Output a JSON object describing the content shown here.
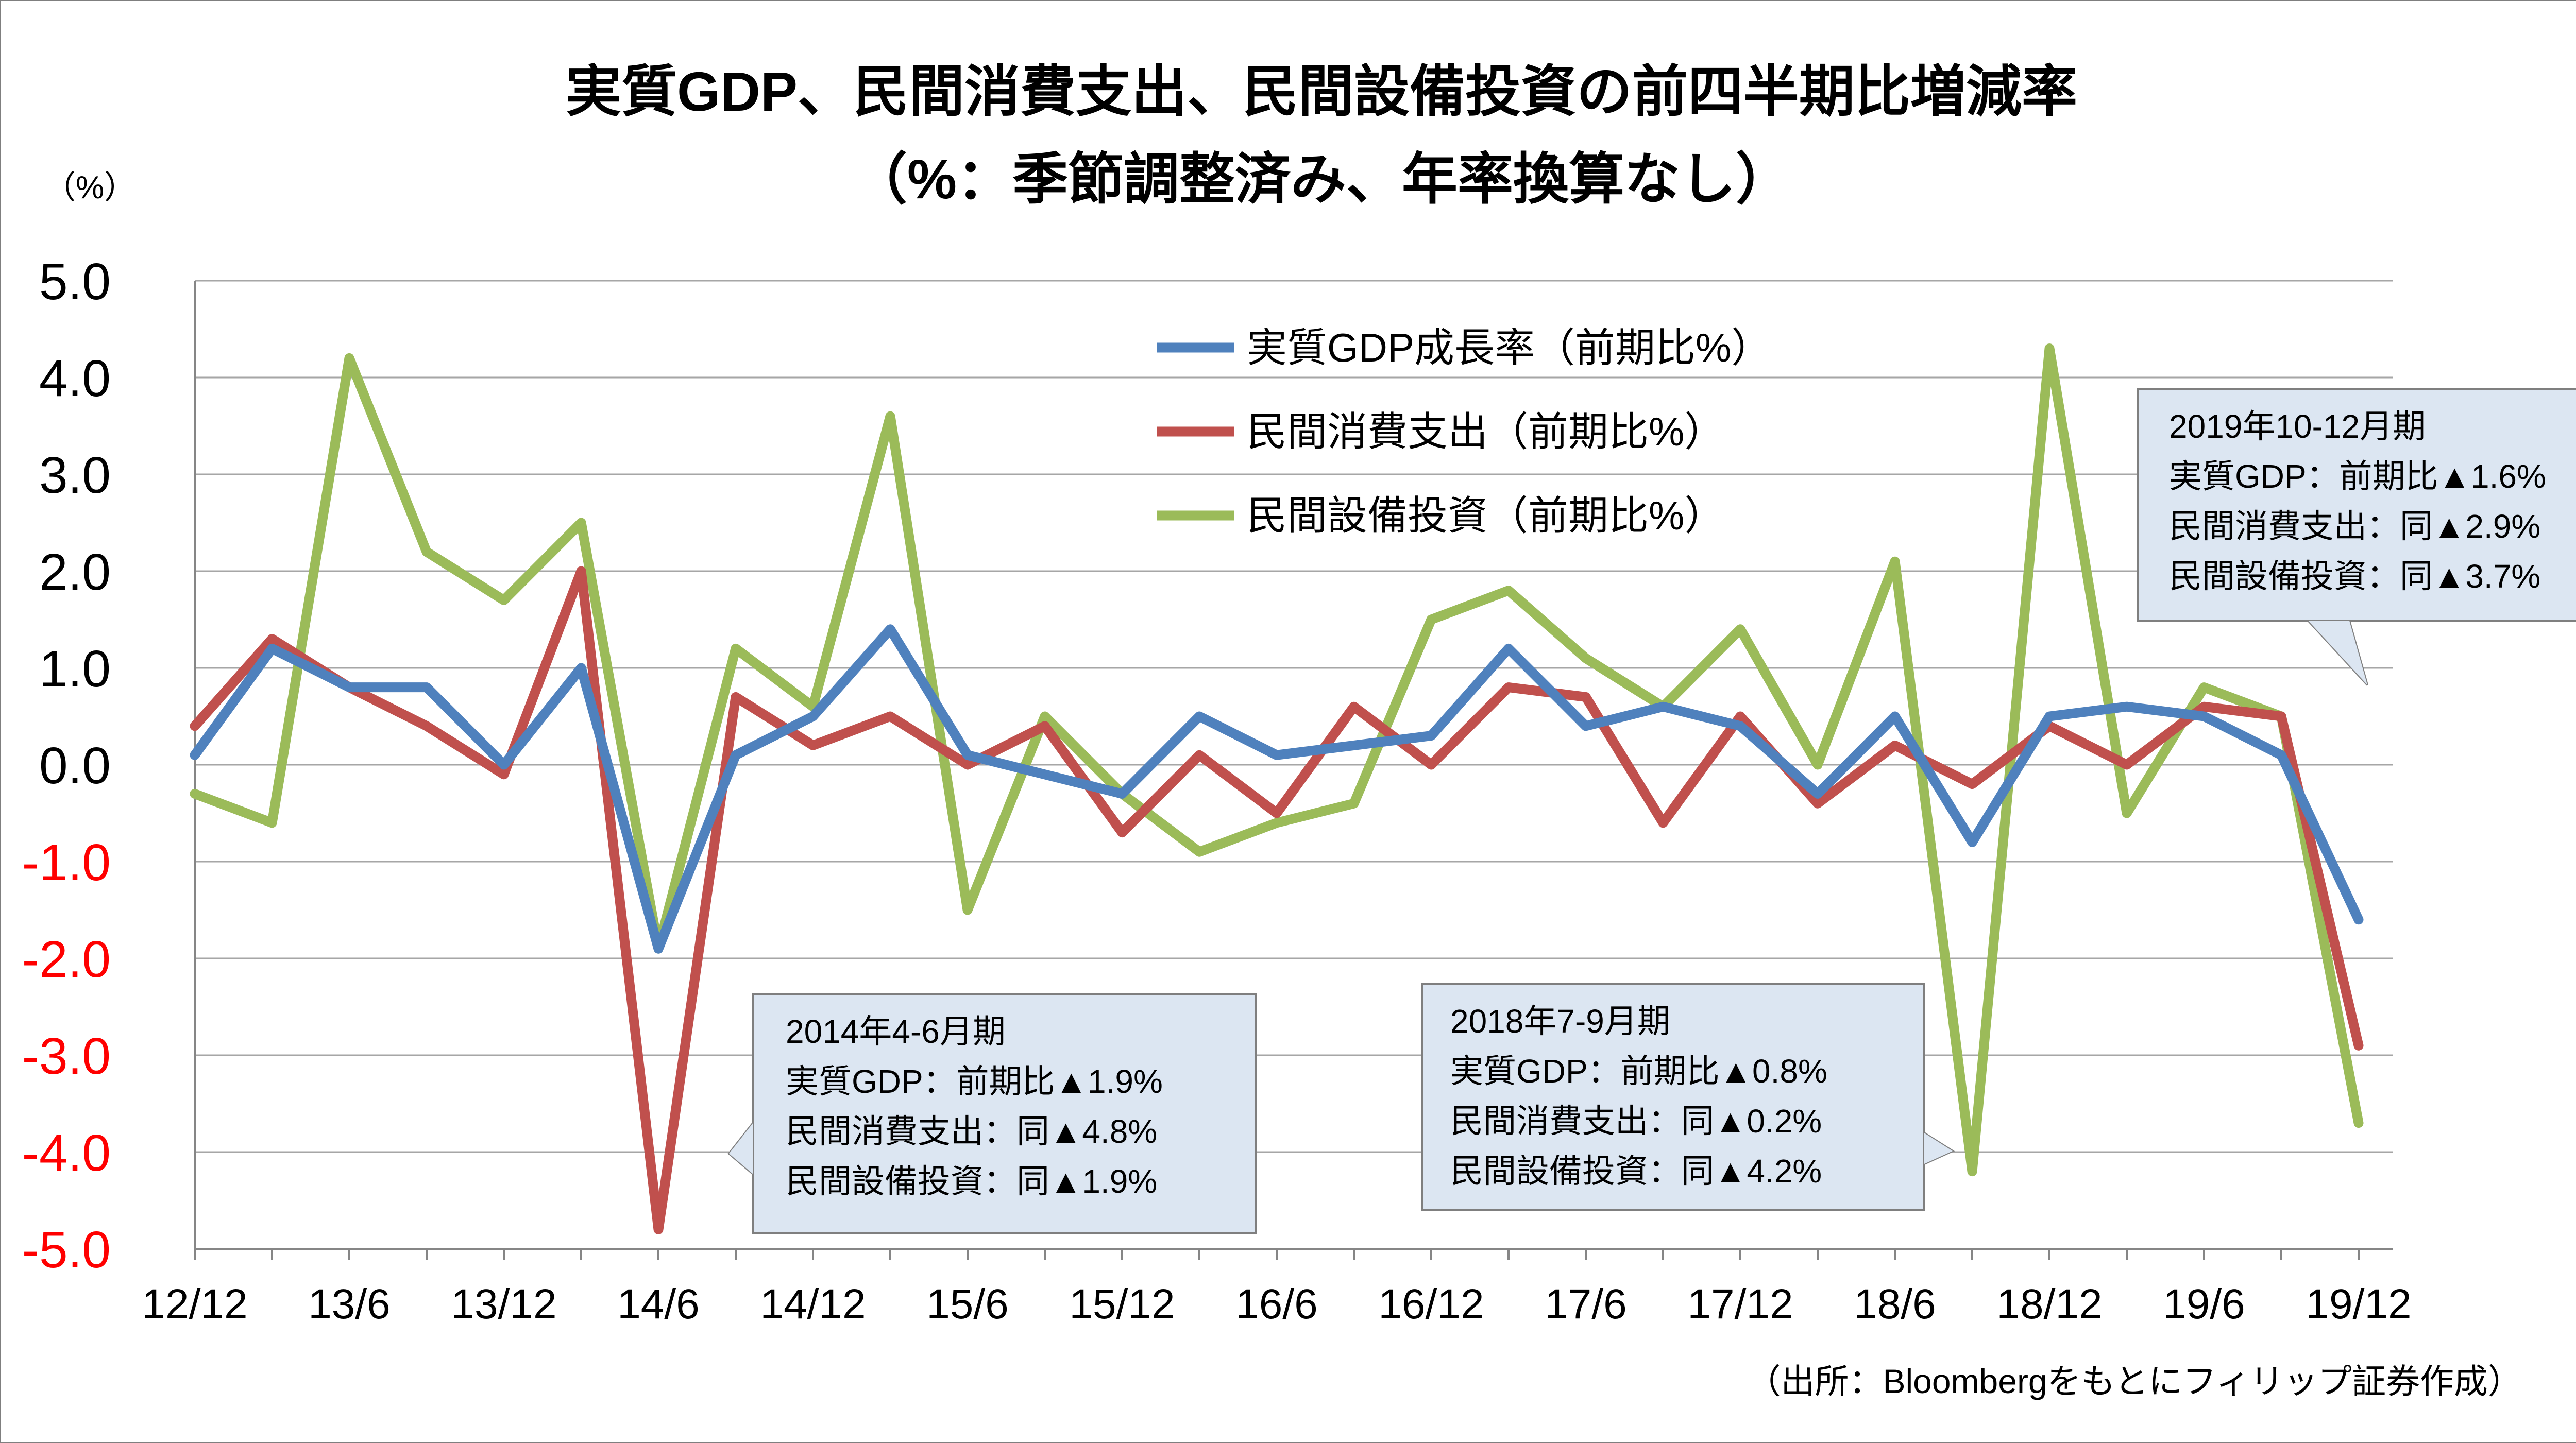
{
  "chart_data": {
    "type": "line",
    "title": "実質GDP、民間消費支出、民間設備投資の前四半期比増減率",
    "subtitle": "（%：季節調整済み、年率換算なし）",
    "ylabel": "（%）",
    "xlabel": "",
    "ylim": [
      -5.0,
      5.0
    ],
    "y_ticks": [
      "5.0",
      "4.0",
      "3.0",
      "2.0",
      "1.0",
      "0.0",
      "-1.0",
      "-2.0",
      "-3.0",
      "-4.0",
      "-5.0"
    ],
    "x_ticks": [
      "12/12",
      "13/6",
      "13/12",
      "14/6",
      "14/12",
      "15/6",
      "15/12",
      "16/6",
      "16/12",
      "17/6",
      "17/12",
      "18/6",
      "18/12",
      "19/6",
      "19/12"
    ],
    "grid": true,
    "legend_position": "top-center",
    "colors": {
      "positive_ticks": "#000000",
      "negative_ticks": "#ff0000",
      "grid": "#a6a6a6",
      "annotation_fill": "#dce6f2",
      "annotation_border": "#7f7f7f"
    },
    "x": [
      "12/12",
      "13/3",
      "13/6",
      "13/9",
      "13/12",
      "14/3",
      "14/6",
      "14/9",
      "14/12",
      "15/3",
      "15/6",
      "15/9",
      "15/12",
      "16/3",
      "16/6",
      "16/9",
      "16/12",
      "17/3",
      "17/6",
      "17/9",
      "17/12",
      "18/3",
      "18/6",
      "18/9",
      "18/12",
      "19/3",
      "19/6",
      "19/9",
      "19/12"
    ],
    "series": [
      {
        "name": "実質GDP成長率（前期比%）",
        "color": "#4f81bd",
        "values": [
          0.1,
          1.2,
          0.8,
          0.8,
          0.0,
          1.0,
          -1.9,
          0.1,
          0.5,
          1.4,
          0.1,
          -0.1,
          -0.3,
          0.5,
          0.1,
          0.2,
          0.3,
          1.2,
          0.4,
          0.6,
          0.4,
          -0.3,
          0.5,
          -0.8,
          0.5,
          0.6,
          0.5,
          0.1,
          -1.6
        ]
      },
      {
        "name": "民間消費支出（前期比%）",
        "color": "#c0504d",
        "values": [
          0.4,
          1.3,
          0.8,
          0.4,
          -0.1,
          2.0,
          -4.8,
          0.7,
          0.2,
          0.5,
          0.0,
          0.4,
          -0.7,
          0.1,
          -0.5,
          0.6,
          0.0,
          0.8,
          0.7,
          -0.6,
          0.5,
          -0.4,
          0.2,
          -0.2,
          0.4,
          0.0,
          0.6,
          0.5,
          -2.9
        ]
      },
      {
        "name": "民間設備投資（前期比%）",
        "color": "#9bbb59",
        "values": [
          -0.3,
          -0.6,
          4.2,
          2.2,
          1.7,
          2.5,
          -1.9,
          1.2,
          0.6,
          3.6,
          -1.5,
          0.5,
          -0.3,
          -0.9,
          -0.6,
          -0.4,
          1.5,
          1.8,
          1.1,
          0.6,
          1.4,
          0.0,
          2.1,
          -4.2,
          4.3,
          -0.5,
          0.8,
          0.5,
          -3.7
        ]
      }
    ],
    "annotations": [
      {
        "lines": [
          "2014年4-6月期",
          "実質GDP：前期比▲1.9%",
          "民間消費支出：同▲4.8%",
          "民間設備投資：同▲1.9%"
        ],
        "points_to": "14/6"
      },
      {
        "lines": [
          "2018年7-9月期",
          "実質GDP：前期比▲0.8%",
          "民間消費支出：同▲0.2%",
          "民間設備投資：同▲4.2%"
        ],
        "points_to": "18/9"
      },
      {
        "lines": [
          "2019年10-12月期",
          "実質GDP：前期比▲1.6%",
          "民間消費支出：同▲2.9%",
          "民間設備投資：同▲3.7%"
        ],
        "points_to": "19/12"
      }
    ],
    "source": "（出所：Bloombergをもとにフィリップ証券作成）"
  }
}
